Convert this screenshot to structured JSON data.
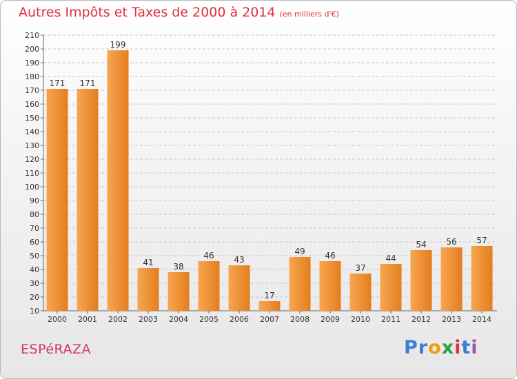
{
  "header": {
    "title": "Autres Impôts et Taxes de 2000 à 2014",
    "subtitle": "(en milliers d'€)"
  },
  "footer": {
    "commune": "ESPéRAZA",
    "logo_letters": [
      "P",
      "r",
      "o",
      "x",
      "i",
      "t",
      "i"
    ]
  },
  "colors": {
    "title": "#e0303a",
    "bar_light": "#f7a651",
    "bar_dark": "#e47d1e",
    "logo": [
      "#3a7fd5",
      "#3a7fd5",
      "#f39c12",
      "#2ea043",
      "#e0303a",
      "#3a7fd5",
      "#9b59b6"
    ]
  },
  "chart_data": {
    "type": "bar",
    "categories": [
      "2000",
      "2001",
      "2002",
      "2003",
      "2004",
      "2005",
      "2006",
      "2007",
      "2008",
      "2009",
      "2010",
      "2011",
      "2012",
      "2013",
      "2014"
    ],
    "values": [
      171,
      171,
      199,
      41,
      38,
      46,
      43,
      17,
      49,
      46,
      37,
      44,
      54,
      56,
      57
    ],
    "value_labels": [
      "171",
      "171",
      "199",
      "41",
      "38",
      "46",
      "43",
      "17",
      "49",
      "46",
      "37",
      "44",
      "54",
      "56",
      "57"
    ],
    "yticks": [
      "10",
      "20",
      "30",
      "40",
      "50",
      "60",
      "70",
      "80",
      "90",
      "100",
      "110",
      "120",
      "130",
      "140",
      "150",
      "160",
      "170",
      "180",
      "190",
      "200",
      "210"
    ],
    "ylim": [
      10,
      210
    ],
    "ystep": 10,
    "grid": true,
    "grid_style": "dashed horizontal",
    "legend": "none"
  }
}
